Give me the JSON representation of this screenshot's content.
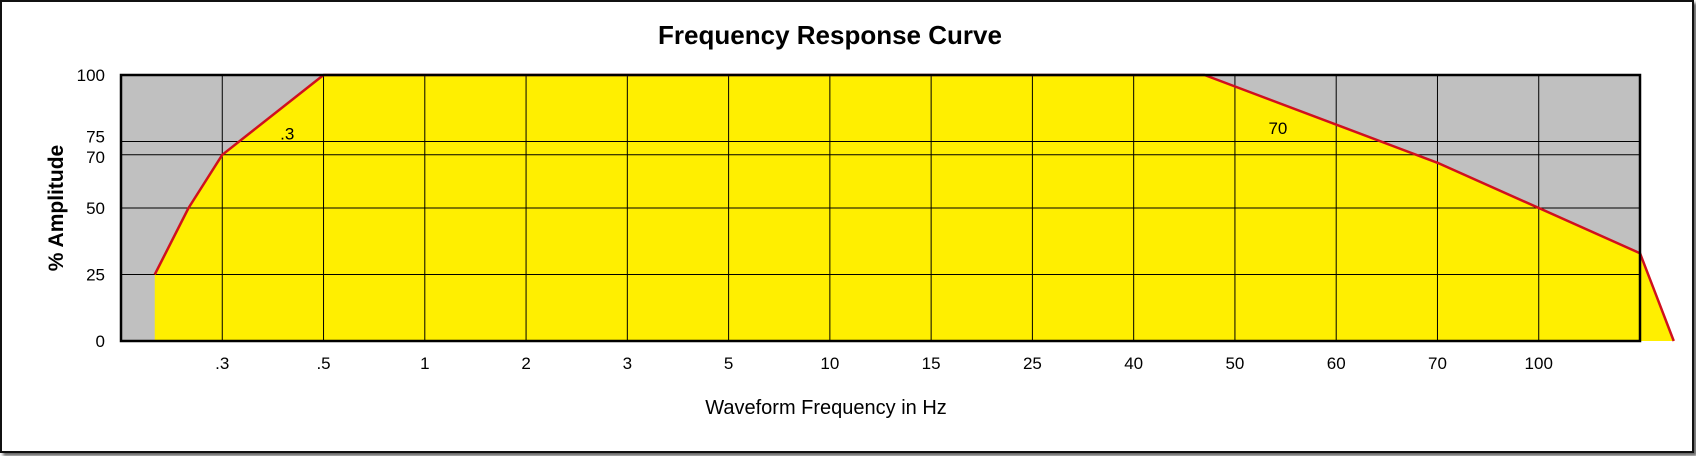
{
  "chart_data": {
    "type": "area",
    "title": "Frequency Response Curve",
    "xlabel": "Waveform Frequency in Hz",
    "ylabel": "% Amplitude",
    "x_scale": "categorical",
    "x_ticks": [
      ".3",
      ".5",
      "1",
      "2",
      "3",
      "5",
      "10",
      "15",
      "25",
      "40",
      "50",
      "60",
      "70",
      "100"
    ],
    "y_ticks": [
      0,
      25,
      50,
      70,
      75,
      100
    ],
    "ylim": [
      0,
      100
    ],
    "grid": true,
    "series": [
      {
        "points": [
          {
            "x": "0.1",
            "y": 25
          },
          {
            "x": "0.2",
            "y": 50
          },
          {
            "x": ".3",
            "y": 70
          },
          {
            "x": ".5",
            "y": 100
          },
          {
            "x": "47",
            "y": 100
          },
          {
            "x": "70",
            "y": 67
          },
          {
            "x": "130",
            "y": 33
          },
          {
            "x": "140",
            "y": 0
          }
        ]
      }
    ],
    "annotations": [
      {
        "text": ".3",
        "x": ".3",
        "y": 78
      },
      {
        "text": "70",
        "x": "50",
        "y": 80
      }
    ],
    "colors": {
      "fill": "#ffef00",
      "line": "#d0101e",
      "background": "#c0c0c0",
      "grid": "#000000"
    }
  }
}
